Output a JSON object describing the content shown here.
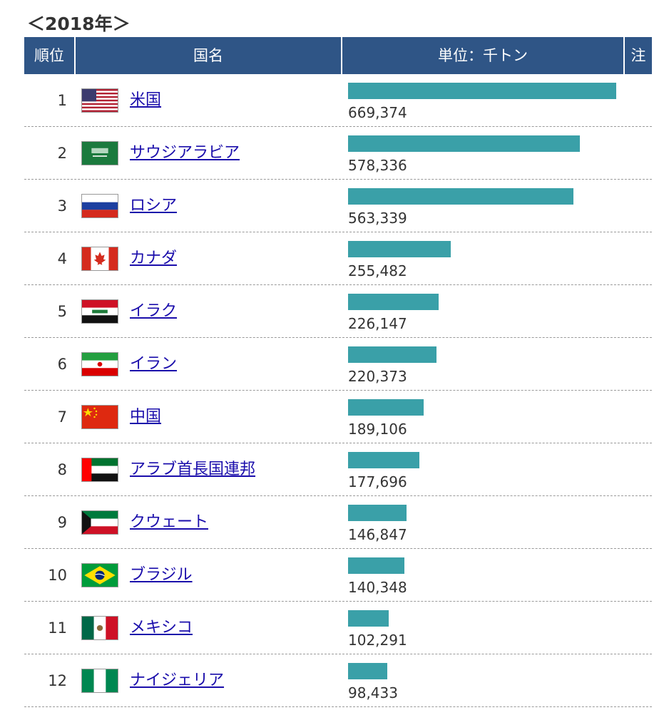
{
  "year_title": "＜2018年＞",
  "header": {
    "rank": "順位",
    "country": "国名",
    "unit": "単位：千トン",
    "note": "注"
  },
  "chart_data": {
    "type": "bar",
    "title": "＜2018年＞",
    "unit": "単位：千トン",
    "rows": [
      {
        "rank": "1",
        "country": "米国",
        "flag_icon": "usa-flag-icon",
        "value": 669374,
        "label": "669,374"
      },
      {
        "rank": "2",
        "country": "サウジアラビア",
        "flag_icon": "saudi-arabia-flag-icon",
        "value": 578336,
        "label": "578,336"
      },
      {
        "rank": "3",
        "country": "ロシア",
        "flag_icon": "russia-flag-icon",
        "value": 563339,
        "label": "563,339"
      },
      {
        "rank": "4",
        "country": "カナダ",
        "flag_icon": "canada-flag-icon",
        "value": 255482,
        "label": "255,482"
      },
      {
        "rank": "5",
        "country": "イラク",
        "flag_icon": "iraq-flag-icon",
        "value": 226147,
        "label": "226,147"
      },
      {
        "rank": "6",
        "country": "イラン",
        "flag_icon": "iran-flag-icon",
        "value": 220373,
        "label": "220,373"
      },
      {
        "rank": "7",
        "country": "中国",
        "flag_icon": "china-flag-icon",
        "value": 189106,
        "label": "189,106"
      },
      {
        "rank": "8",
        "country": "アラブ首長国連邦",
        "flag_icon": "uae-flag-icon",
        "value": 177696,
        "label": "177,696"
      },
      {
        "rank": "9",
        "country": "クウェート",
        "flag_icon": "kuwait-flag-icon",
        "value": 146847,
        "label": "146,847"
      },
      {
        "rank": "10",
        "country": "ブラジル",
        "flag_icon": "brazil-flag-icon",
        "value": 140348,
        "label": "140,348"
      },
      {
        "rank": "11",
        "country": "メキシコ",
        "flag_icon": "mexico-flag-icon",
        "value": 102291,
        "label": "102,291"
      },
      {
        "rank": "12",
        "country": "ナイジェリア",
        "flag_icon": "nigeria-flag-icon",
        "value": 98433,
        "label": "98,433"
      }
    ]
  },
  "colors": {
    "header_bg": "#2f5586",
    "bar": "#3aa0a8",
    "link": "#1a0dab"
  }
}
